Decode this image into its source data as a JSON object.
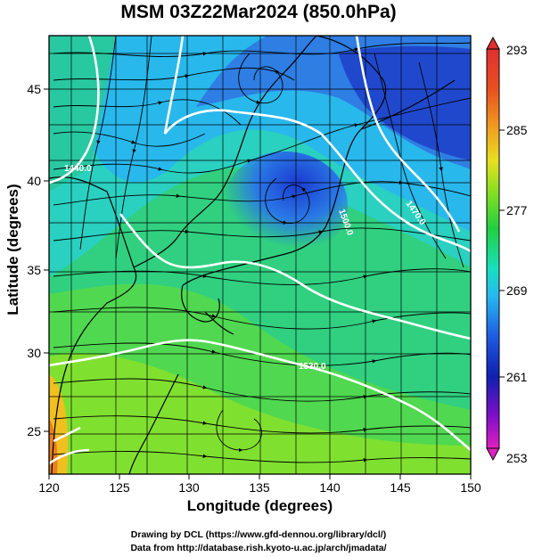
{
  "title": "MSM 03Z22Mar2024 (850.0hPa)",
  "xlabel": "Longitude (degrees)",
  "ylabel": "Latitude  (degrees)",
  "credits": {
    "line1": "Drawing by DCL (https://www.gfd-dennou.org/library/dcl/)",
    "line2": "Data from http://database.rish.kyoto-u.ac.jp/arch/jmadata/"
  },
  "map": {
    "lon_range": [
      120,
      150
    ],
    "lat_range": [
      22.4,
      47.6
    ],
    "lon_ticks": [
      120,
      125,
      130,
      135,
      140,
      145,
      150
    ],
    "lat_ticks": [
      25,
      30,
      35,
      40,
      45
    ],
    "lon_tick_labels": [
      "120",
      "125",
      "130",
      "135",
      "140",
      "145",
      "150"
    ],
    "lat_tick_labels": [
      "25",
      "30",
      "35",
      "40",
      "45"
    ],
    "grid": true
  },
  "colorbar": {
    "min": 253,
    "max": 293,
    "labels": [
      "293",
      "285",
      "277",
      "269",
      "261",
      "253"
    ],
    "colors": [
      "#e020c0",
      "#8010c8",
      "#1020b0",
      "#1e5ce0",
      "#26b8f0",
      "#18e0c0",
      "#20d040",
      "#90e020",
      "#e8e020",
      "#f0a020",
      "#e85020",
      "#e03030"
    ]
  },
  "contours": [
    {
      "label": "1470.0"
    },
    {
      "label": "1500.0"
    },
    {
      "label": "1530.0"
    },
    {
      "label": "1440.0"
    }
  ],
  "colors": {
    "coast": "#000000",
    "contour": "#ffffff",
    "stream": "#000000"
  }
}
